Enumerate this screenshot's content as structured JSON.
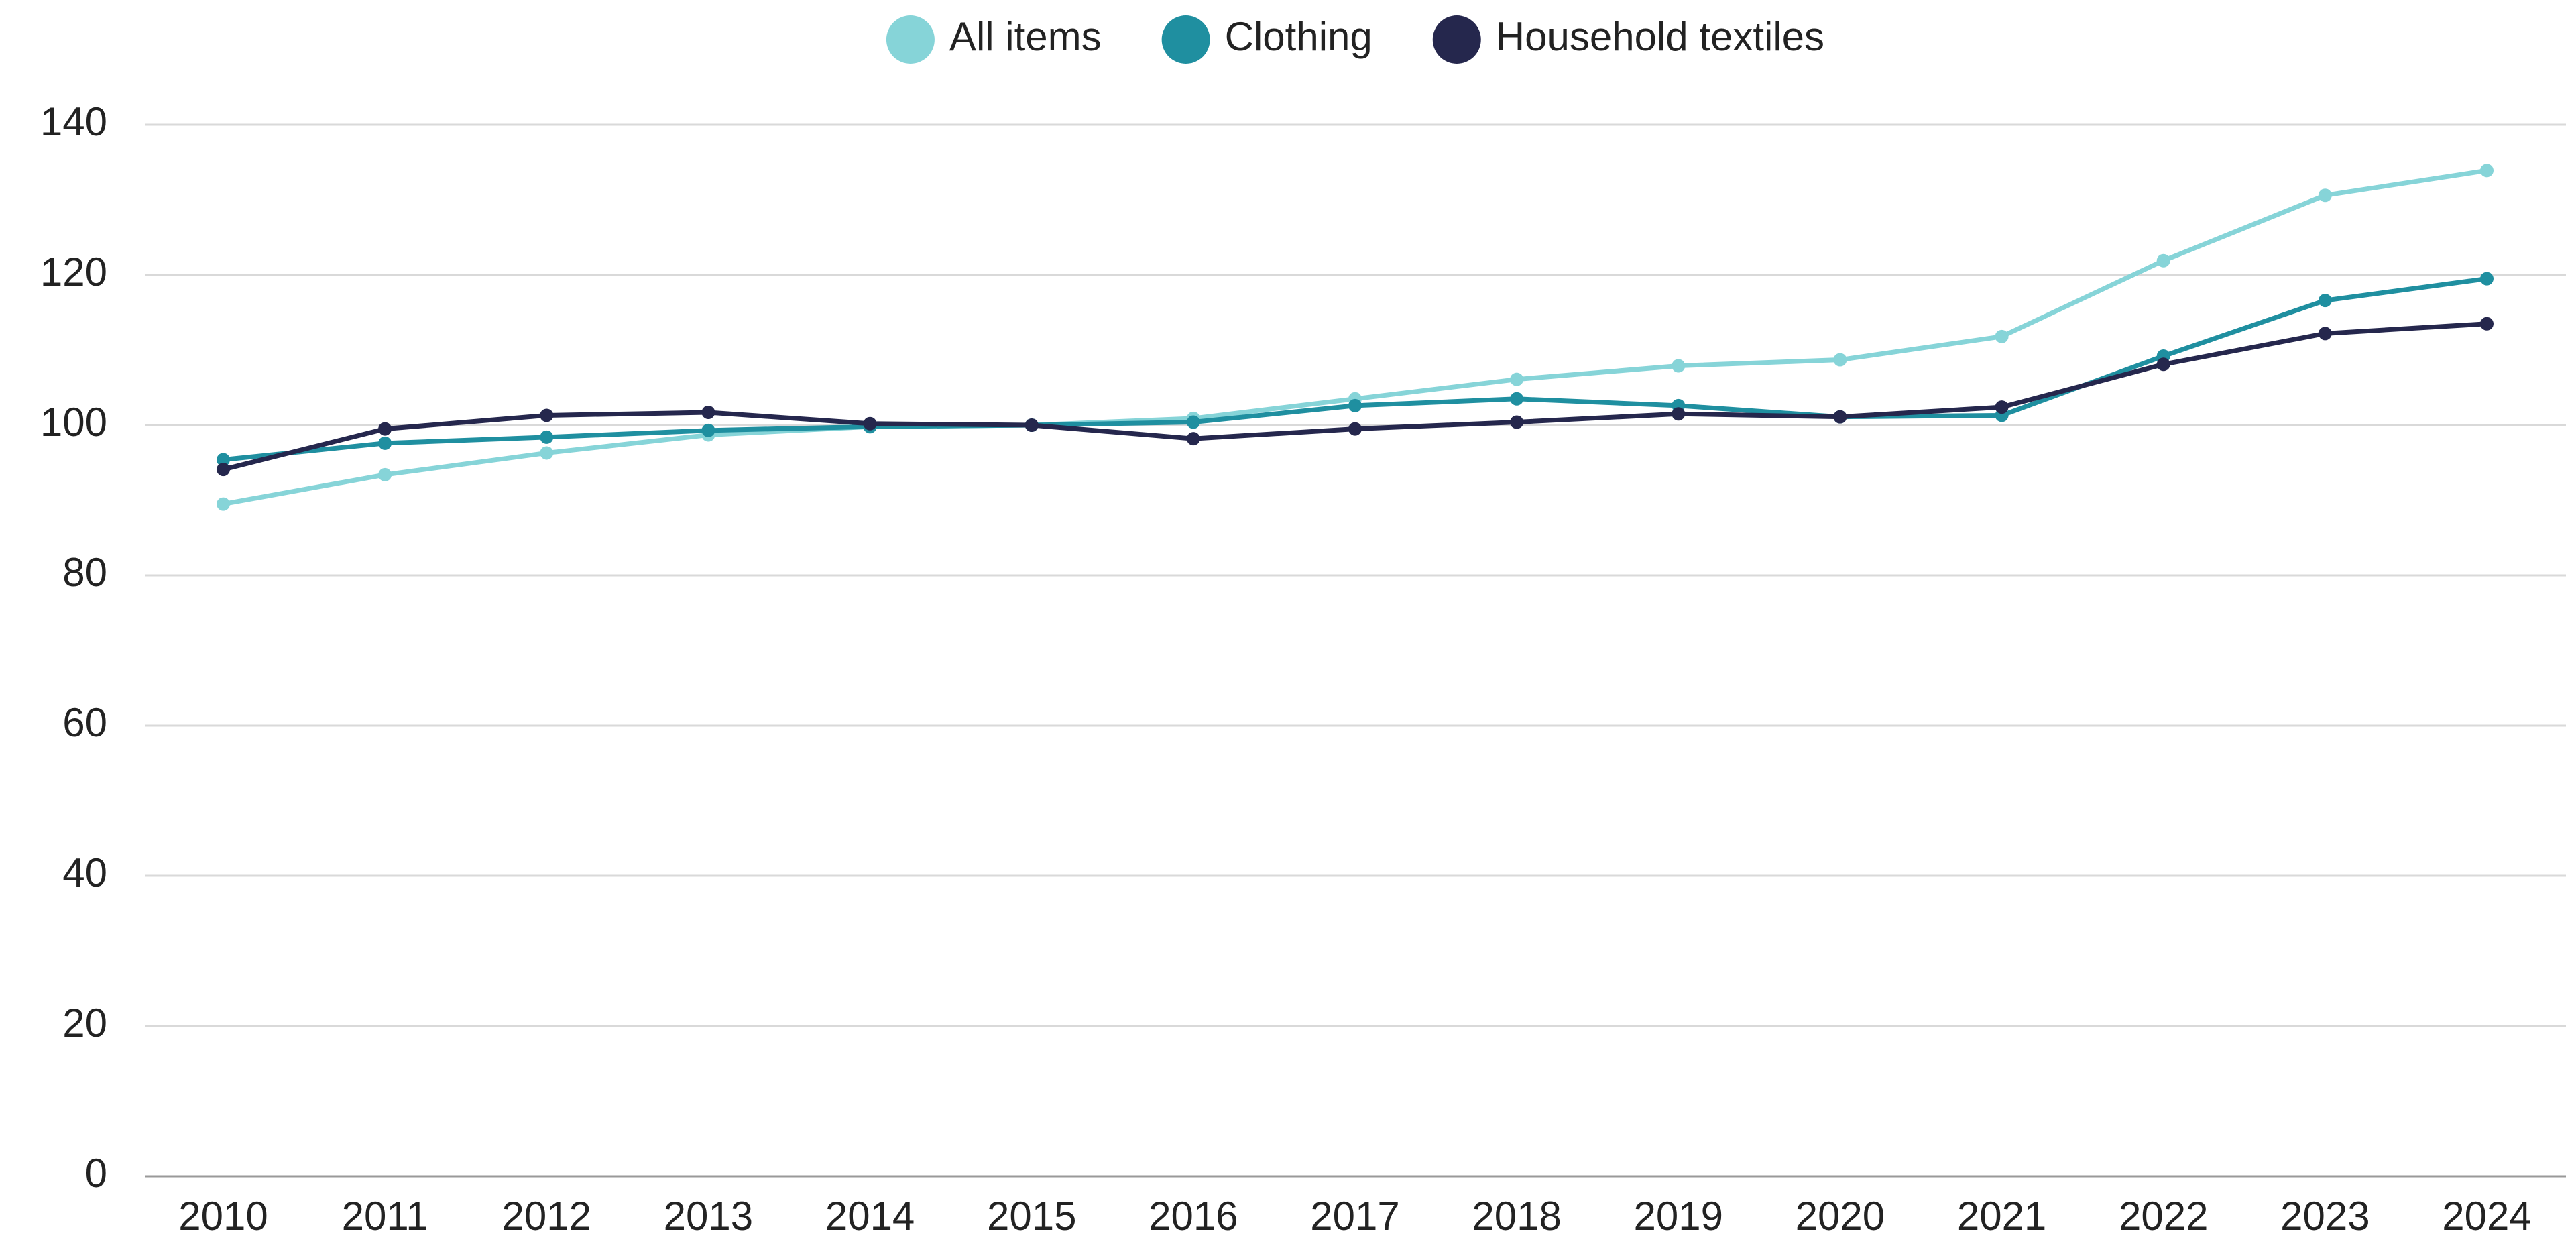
{
  "chart_data": {
    "type": "line",
    "categories": [
      "2010",
      "2011",
      "2012",
      "2013",
      "2014",
      "2015",
      "2016",
      "2017",
      "2018",
      "2019",
      "2020",
      "2021",
      "2022",
      "2023",
      "2024"
    ],
    "series": [
      {
        "name": "All items",
        "color": "#86d4d8",
        "values": [
          89.5,
          93.4,
          96.3,
          98.7,
          99.8,
          100,
          100.9,
          103.5,
          106.1,
          107.9,
          108.7,
          111.8,
          121.9,
          130.6,
          133.9
        ]
      },
      {
        "name": "Clothing",
        "color": "#1f8fa0",
        "values": [
          95.4,
          97.6,
          98.4,
          99.3,
          99.8,
          100,
          100.4,
          102.6,
          103.5,
          102.6,
          101.1,
          101.3,
          109.2,
          116.6,
          119.5
        ]
      },
      {
        "name": "Household textiles",
        "color": "#25274d",
        "values": [
          94.1,
          99.5,
          101.3,
          101.7,
          100.2,
          100,
          98.2,
          99.5,
          100.4,
          101.5,
          101.1,
          102.4,
          108.1,
          112.2,
          113.5
        ]
      }
    ],
    "ylim": [
      0,
      140
    ],
    "yticks": [
      0,
      20,
      40,
      60,
      80,
      100,
      120,
      140
    ],
    "grid": true,
    "legend": "top"
  }
}
